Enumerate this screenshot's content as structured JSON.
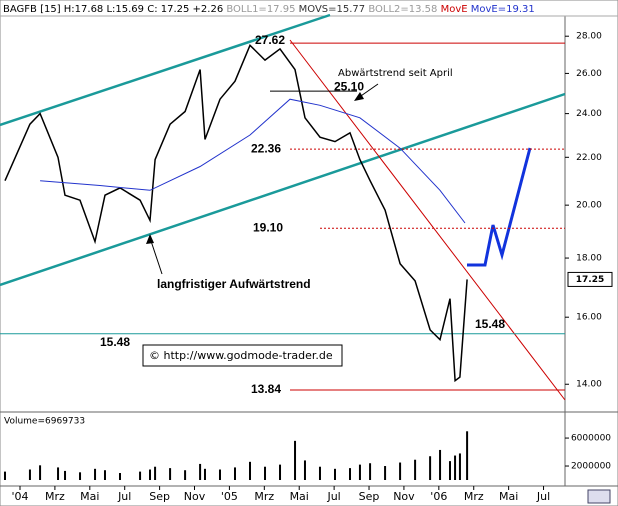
{
  "chart_data": [
    {
      "type": "line",
      "header": [
        {
          "text": "BAGFB [15] H:17.68 L:15.69 C: 17.25 +2.26 ",
          "color": "#000000"
        },
        {
          "text": "BOLL1=17.95 ",
          "color": "#999999"
        },
        {
          "text": "MOVS=15.77 ",
          "color": "#333333"
        },
        {
          "text": "BOLL2=13.58 ",
          "color": "#999999"
        },
        {
          "text": "MovE ",
          "color": "#cc0000"
        },
        {
          "text": "MovE=19.31",
          "color": "#2233cc"
        }
      ],
      "log": true,
      "xlim": [
        -1.146,
        31.23
      ],
      "xticks": [
        {
          "value": 0,
          "label": "'04"
        },
        {
          "value": 2,
          "label": "Mrz"
        },
        {
          "value": 4,
          "label": "Mai"
        },
        {
          "value": 6,
          "label": "Jul"
        },
        {
          "value": 8,
          "label": "Sep"
        },
        {
          "value": 10,
          "label": "Nov"
        },
        {
          "value": 12,
          "label": "'05"
        },
        {
          "value": 14,
          "label": "Mrz"
        },
        {
          "value": 16,
          "label": "Mai"
        },
        {
          "value": 18,
          "label": "Jul"
        },
        {
          "value": 20,
          "label": "Sep"
        },
        {
          "value": 22,
          "label": "Nov"
        },
        {
          "value": 24,
          "label": "'06"
        },
        {
          "value": 26,
          "label": "Mrz"
        },
        {
          "value": 28,
          "label": "Mai"
        },
        {
          "value": 30,
          "label": "Jul"
        }
      ],
      "ylim": [
        13.3,
        29.5
      ],
      "yticks": [
        {
          "value": 14,
          "label": "14.00"
        },
        {
          "value": 16,
          "label": "16.00"
        },
        {
          "value": 18,
          "label": "18.00"
        },
        {
          "value": 20,
          "label": "20.00"
        },
        {
          "value": 22,
          "label": "22.00"
        },
        {
          "value": 24,
          "label": "24.00"
        },
        {
          "value": 26,
          "label": "26.00"
        },
        {
          "value": 28,
          "label": "28.00"
        }
      ],
      "series": [
        {
          "color": "#000000",
          "x": [
            -0.86,
            0.57,
            1.15,
            2.18,
            2.58,
            3.44,
            4.3,
            4.87,
            5.73,
            6.88,
            7.45,
            7.74,
            8.6,
            9.46,
            10.32,
            10.6,
            11.46,
            12.32,
            13.18,
            14.04,
            14.9,
            15.76,
            16.33,
            17.19,
            18.05,
            18.91,
            19.48,
            20.06,
            20.92,
            21.78,
            22.64,
            23.5,
            24.07,
            24.64,
            24.93,
            25.21,
            25.62
          ],
          "values": [
            21.0,
            23.5,
            24.0,
            22.0,
            20.4,
            20.2,
            18.6,
            20.4,
            20.7,
            20.2,
            19.4,
            21.9,
            23.5,
            24.1,
            26.2,
            22.8,
            24.7,
            25.6,
            27.5,
            26.7,
            27.3,
            26.2,
            23.8,
            22.9,
            22.7,
            23.1,
            21.9,
            21.0,
            19.8,
            17.8,
            17.2,
            15.6,
            15.3,
            16.6,
            14.1,
            14.2,
            17.25
          ]
        },
        {
          "color": "#2233cc",
          "x": [
            1.15,
            4.58,
            7.45,
            10.32,
            13.18,
            15.47,
            17.19,
            19.48,
            21.78,
            24.07,
            25.5
          ],
          "values": [
            21.0,
            20.8,
            20.6,
            21.6,
            23.0,
            24.7,
            24.4,
            23.8,
            22.4,
            20.6,
            19.3
          ]
        }
      ],
      "levels": [
        {
          "value": 27.62,
          "color": "#cc0000"
        },
        {
          "value": 25.1,
          "label": "25.10",
          "color": "#000000"
        },
        {
          "value": 22.36,
          "color": "#cc0000"
        },
        {
          "value": 19.1,
          "label": "19.10",
          "color": "#cc0000"
        },
        {
          "value": 15.48,
          "color": "#1a9a9a"
        },
        {
          "value": 13.84,
          "color": "#cc0000"
        }
      ],
      "annotations": [
        "Abwärtstrend seit April",
        "langfristiger Aufwärtstrend",
        "© http://www.godmode-trader.de"
      ]
    },
    {
      "type": "bar",
      "label": "Volume=6969733",
      "ylim": [
        0,
        9300000
      ],
      "yticks": [
        2000000,
        6000000
      ],
      "color": "#000000",
      "values": [
        1200000,
        1500000,
        2100000,
        1800000,
        1300000,
        1100000,
        1600000,
        1400000,
        1000000,
        1200000,
        1500000,
        1900000,
        1700000,
        1400000,
        2300000,
        1600000,
        1500000,
        1800000,
        2600000,
        1900000,
        2200000,
        5600000,
        2800000,
        1900000,
        1600000,
        1700000,
        2200000,
        2400000,
        2000000,
        2500000,
        2900000,
        3400000,
        4300000,
        2700000,
        3500000,
        3800000,
        6969733
      ]
    }
  ]
}
